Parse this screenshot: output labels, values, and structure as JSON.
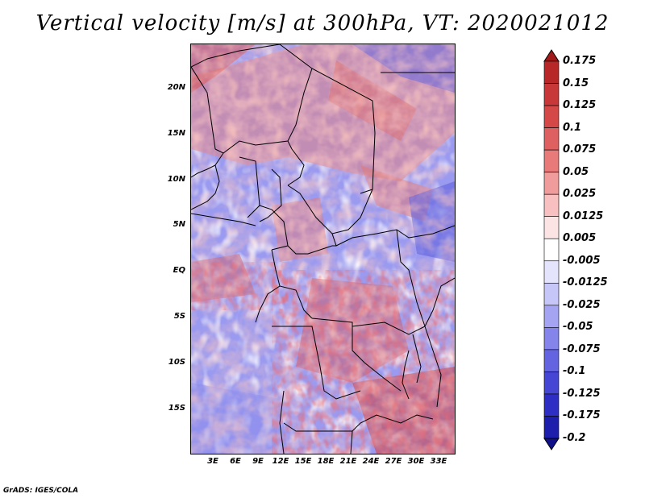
{
  "title": "Vertical velocity [m/s] at 300hPa, VT: 2020021012",
  "footer": "GrADS: IGES/COLA",
  "lat_ticks": [
    "20N",
    "15N",
    "10N",
    "5N",
    "EQ",
    "5S",
    "10S",
    "15S"
  ],
  "lon_ticks": [
    "3E",
    "6E",
    "9E",
    "12E",
    "15E",
    "18E",
    "21E",
    "24E",
    "27E",
    "30E",
    "33E"
  ],
  "colorbar": {
    "labels": [
      "0.175",
      "0.15",
      "0.125",
      "0.1",
      "0.075",
      "0.05",
      "0.025",
      "0.0125",
      "0.005",
      "-0.005",
      "-0.0125",
      "-0.025",
      "-0.05",
      "-0.075",
      "-0.1",
      "-0.125",
      "-0.175",
      "-0.2"
    ],
    "colors": [
      "#a01a1a",
      "#b82828",
      "#c83838",
      "#d44848",
      "#de6060",
      "#e87a7a",
      "#f09c9c",
      "#f8c0c0",
      "#fde4e4",
      "#ffffff",
      "#e4e4fc",
      "#c6c6f8",
      "#a4a4f2",
      "#8484ea",
      "#6464e0",
      "#4646d4",
      "#2e2ec4",
      "#1e1eac",
      "#10108c"
    ]
  },
  "map_colors": {
    "positive": "#e26a6a",
    "negative": "#8282e8",
    "neutral": "#f4f0f6"
  }
}
